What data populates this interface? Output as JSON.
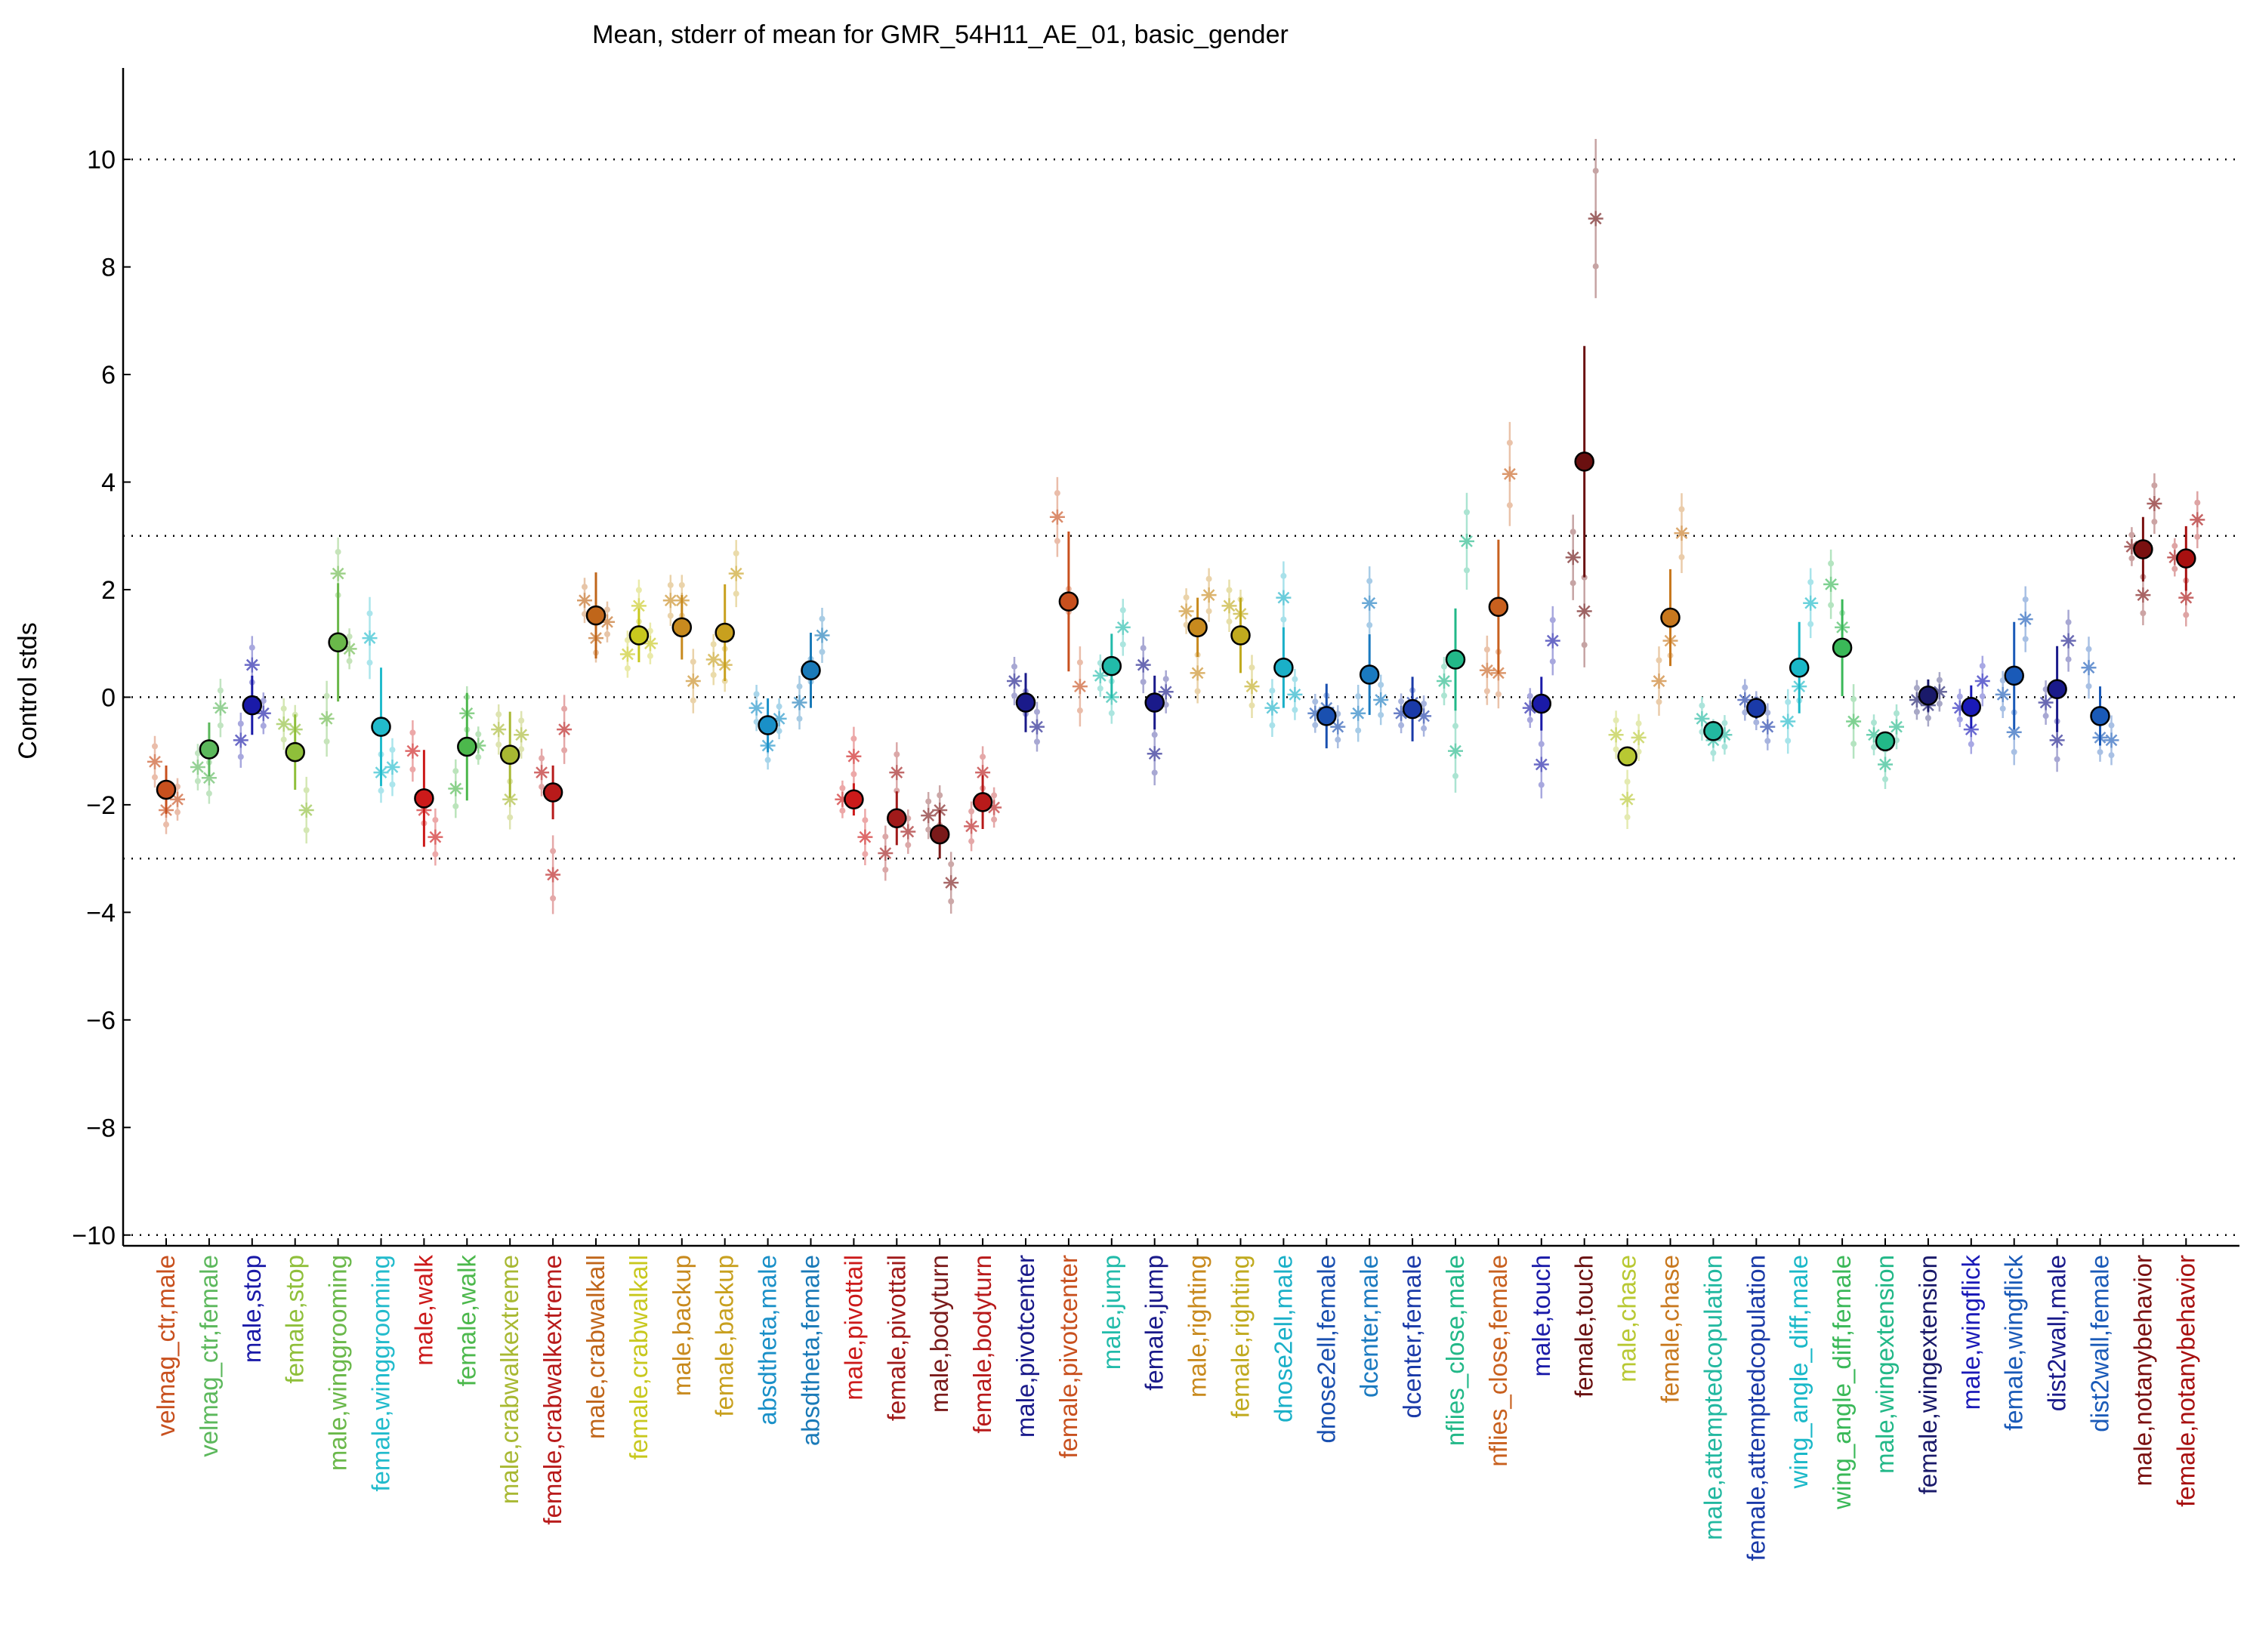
{
  "chart_data": {
    "type": "scatter",
    "title": "Mean, stderr of mean for GMR_54H11_AE_01, basic_gender",
    "xlabel": "",
    "ylabel": "Control stds",
    "ylim": [
      -10.2,
      11.7
    ],
    "yticks": [
      10,
      8,
      6,
      4,
      2,
      0,
      -2,
      -4,
      -6,
      -8,
      -10
    ],
    "ytick_labels": [
      "10",
      "8",
      "6",
      "4",
      "2",
      "0",
      "−2",
      "−4",
      "−6",
      "−8",
      "−10"
    ],
    "reference_lines": [
      10,
      3,
      0,
      -3,
      -10
    ],
    "grid": false,
    "legend": "none",
    "categories": [
      {
        "label": "velmag_ctr,male",
        "color": "#c8501e",
        "mean": -1.72,
        "stderr": 0.45,
        "exps": [
          -1.2,
          -2.1,
          -1.9
        ]
      },
      {
        "label": "velmag_ctr,female",
        "color": "#5cb85c",
        "mean": -0.97,
        "stderr": 0.5,
        "exps": [
          -1.3,
          -1.5,
          -0.2
        ]
      },
      {
        "label": "male,stop",
        "color": "#1a1aa8",
        "mean": -0.15,
        "stderr": 0.55,
        "exps": [
          -0.8,
          0.6,
          -0.3
        ]
      },
      {
        "label": "female,stop",
        "color": "#8fbf3a",
        "mean": -1.02,
        "stderr": 0.7,
        "exps": [
          -0.5,
          -0.6,
          -2.1
        ]
      },
      {
        "label": "male,winggrooming",
        "color": "#6ab84a",
        "mean": 1.02,
        "stderr": 1.1,
        "exps": [
          -0.4,
          2.3,
          0.9
        ]
      },
      {
        "label": "female,winggrooming",
        "color": "#22bbcc",
        "mean": -0.55,
        "stderr": 1.1,
        "exps": [
          1.1,
          -1.4,
          -1.3
        ]
      },
      {
        "label": "male,walk",
        "color": "#cc1a1a",
        "mean": -1.88,
        "stderr": 0.9,
        "exps": [
          -1.0,
          -2.1,
          -2.6
        ]
      },
      {
        "label": "female,walk",
        "color": "#4cb84c",
        "mean": -0.92,
        "stderr": 1.0,
        "exps": [
          -1.7,
          -0.3,
          -0.9
        ]
      },
      {
        "label": "male,crabwalkextreme",
        "color": "#a8b832",
        "mean": -1.07,
        "stderr": 0.8,
        "exps": [
          -0.6,
          -1.9,
          -0.7
        ]
      },
      {
        "label": "female,crabwalkextreme",
        "color": "#b81a1a",
        "mean": -1.77,
        "stderr": 0.5,
        "exps": [
          -1.4,
          -3.3,
          -0.6
        ]
      },
      {
        "label": "male,crabwalkall",
        "color": "#c0661a",
        "mean": 1.52,
        "stderr": 0.8,
        "exps": [
          1.8,
          1.1,
          1.4
        ]
      },
      {
        "label": "female,crabwalkall",
        "color": "#c8c81e",
        "mean": 1.15,
        "stderr": 0.5,
        "exps": [
          0.8,
          1.7,
          1.0
        ]
      },
      {
        "label": "male,backup",
        "color": "#c88a1e",
        "mean": 1.3,
        "stderr": 0.6,
        "exps": [
          1.8,
          1.8,
          0.3
        ]
      },
      {
        "label": "female,backup",
        "color": "#c8a01e",
        "mean": 1.2,
        "stderr": 0.9,
        "exps": [
          0.7,
          0.6,
          2.3
        ]
      },
      {
        "label": "absdtheta,male",
        "color": "#1a90c8",
        "mean": -0.52,
        "stderr": 0.5,
        "exps": [
          -0.2,
          -0.9,
          -0.4
        ]
      },
      {
        "label": "absdtheta,female",
        "color": "#1a7ab8",
        "mean": 0.5,
        "stderr": 0.7,
        "exps": [
          -0.1,
          0.5,
          1.15
        ]
      },
      {
        "label": "male,pivottail",
        "color": "#cc1a1a",
        "mean": -1.9,
        "stderr": 0.3,
        "exps": [
          -1.9,
          -1.1,
          -2.6
        ]
      },
      {
        "label": "female,pivottail",
        "color": "#a01a1a",
        "mean": -2.25,
        "stderr": 0.5,
        "exps": [
          -2.9,
          -1.4,
          -2.5
        ]
      },
      {
        "label": "male,bodyturn",
        "color": "#7a1a1a",
        "mean": -2.55,
        "stderr": 0.45,
        "exps": [
          -2.2,
          -2.1,
          -3.45
        ]
      },
      {
        "label": "female,bodyturn",
        "color": "#b81a1a",
        "mean": -1.95,
        "stderr": 0.5,
        "exps": [
          -2.4,
          -1.4,
          -2.05
        ]
      },
      {
        "label": "male,pivotcenter",
        "color": "#1a1a8a",
        "mean": -0.1,
        "stderr": 0.55,
        "exps": [
          0.3,
          -0.1,
          -0.55
        ]
      },
      {
        "label": "female,pivotcenter",
        "color": "#c8501e",
        "mean": 1.78,
        "stderr": 1.3,
        "exps": [
          3.35,
          1.8,
          0.2
        ]
      },
      {
        "label": "male,jump",
        "color": "#22bbaa",
        "mean": 0.58,
        "stderr": 0.6,
        "exps": [
          0.4,
          0.0,
          1.3
        ]
      },
      {
        "label": "female,jump",
        "color": "#1a1a8a",
        "mean": -0.1,
        "stderr": 0.5,
        "exps": [
          0.6,
          -1.05,
          0.1
        ]
      },
      {
        "label": "male,righting",
        "color": "#c88a1e",
        "mean": 1.3,
        "stderr": 0.55,
        "exps": [
          1.6,
          0.45,
          1.9
        ]
      },
      {
        "label": "female,righting",
        "color": "#c0aa1e",
        "mean": 1.15,
        "stderr": 0.7,
        "exps": [
          1.7,
          1.55,
          0.2
        ]
      },
      {
        "label": "dnose2ell,male",
        "color": "#1ab0c8",
        "mean": 0.55,
        "stderr": 0.75,
        "exps": [
          -0.2,
          1.85,
          0.05
        ]
      },
      {
        "label": "dnose2ell,female",
        "color": "#1a50b0",
        "mean": -0.35,
        "stderr": 0.6,
        "exps": [
          -0.3,
          -0.2,
          -0.55
        ]
      },
      {
        "label": "dcenter,male",
        "color": "#1a7ac0",
        "mean": 0.42,
        "stderr": 0.75,
        "exps": [
          -0.3,
          1.75,
          -0.05
        ]
      },
      {
        "label": "dcenter,female",
        "color": "#1a3aa8",
        "mean": -0.22,
        "stderr": 0.6,
        "exps": [
          -0.3,
          -0.1,
          -0.35
        ]
      },
      {
        "label": "nflies_close,male",
        "color": "#22b888",
        "mean": 0.7,
        "stderr": 0.95,
        "exps": [
          0.3,
          -1.0,
          2.9
        ]
      },
      {
        "label": "nflies_close,female",
        "color": "#c8601e",
        "mean": 1.68,
        "stderr": 1.25,
        "exps": [
          0.5,
          0.45,
          4.15
        ]
      },
      {
        "label": "male,touch",
        "color": "#1a1aa8",
        "mean": -0.12,
        "stderr": 0.5,
        "exps": [
          -0.2,
          -1.25,
          1.05
        ]
      },
      {
        "label": "female,touch",
        "color": "#6a1010",
        "mean": 4.38,
        "stderr": 2.15,
        "exps": [
          2.6,
          1.6,
          8.9
        ]
      },
      {
        "label": "male,chase",
        "color": "#b8c832",
        "mean": -1.1,
        "stderr": 0.05,
        "exps": [
          -0.7,
          -1.9,
          -0.75
        ]
      },
      {
        "label": "female,chase",
        "color": "#c8781e",
        "mean": 1.48,
        "stderr": 0.9,
        "exps": [
          0.3,
          1.05,
          3.05
        ]
      },
      {
        "label": "male,attemptedcopulation",
        "color": "#22b8a0",
        "mean": -0.63,
        "stderr": 0.1,
        "exps": [
          -0.4,
          -0.8,
          -0.7
        ]
      },
      {
        "label": "female,attemptedcopulation",
        "color": "#1a3aa8",
        "mean": -0.2,
        "stderr": 0.2,
        "exps": [
          -0.05,
          -0.25,
          -0.55
        ]
      },
      {
        "label": "wing_angle_diff,male",
        "color": "#1ab8c8",
        "mean": 0.55,
        "stderr": 0.85,
        "exps": [
          -0.45,
          0.2,
          1.75
        ]
      },
      {
        "label": "wing_angle_diff,female",
        "color": "#3ab858",
        "mean": 0.92,
        "stderr": 0.9,
        "exps": [
          2.1,
          1.3,
          -0.45
        ]
      },
      {
        "label": "male,wingextension",
        "color": "#22b888",
        "mean": -0.82,
        "stderr": 0.12,
        "exps": [
          -0.7,
          -1.25,
          -0.55
        ]
      },
      {
        "label": "female,wingextension",
        "color": "#1a1a6a",
        "mean": 0.03,
        "stderr": 0.3,
        "exps": [
          -0.05,
          -0.15,
          0.1
        ]
      },
      {
        "label": "male,wingflick",
        "color": "#1a1ab8",
        "mean": -0.18,
        "stderr": 0.4,
        "exps": [
          -0.2,
          -0.6,
          0.3
        ]
      },
      {
        "label": "female,wingflick",
        "color": "#1a5ab8",
        "mean": 0.4,
        "stderr": 1.0,
        "exps": [
          0.05,
          -0.65,
          1.45
        ]
      },
      {
        "label": "dist2wall,male",
        "color": "#1a1a8a",
        "mean": 0.15,
        "stderr": 0.8,
        "exps": [
          -0.1,
          -0.8,
          1.05
        ]
      },
      {
        "label": "dist2wall,female",
        "color": "#1a5ab8",
        "mean": -0.35,
        "stderr": 0.55,
        "exps": [
          0.55,
          -0.75,
          -0.8
        ]
      },
      {
        "label": "male,notanybehavior",
        "color": "#7a1010",
        "mean": 2.75,
        "stderr": 0.6,
        "exps": [
          2.8,
          1.9,
          3.6
        ]
      },
      {
        "label": "female,notanybehavior",
        "color": "#a81010",
        "mean": 2.58,
        "stderr": 0.6,
        "exps": [
          2.6,
          1.85,
          3.3
        ]
      }
    ]
  }
}
